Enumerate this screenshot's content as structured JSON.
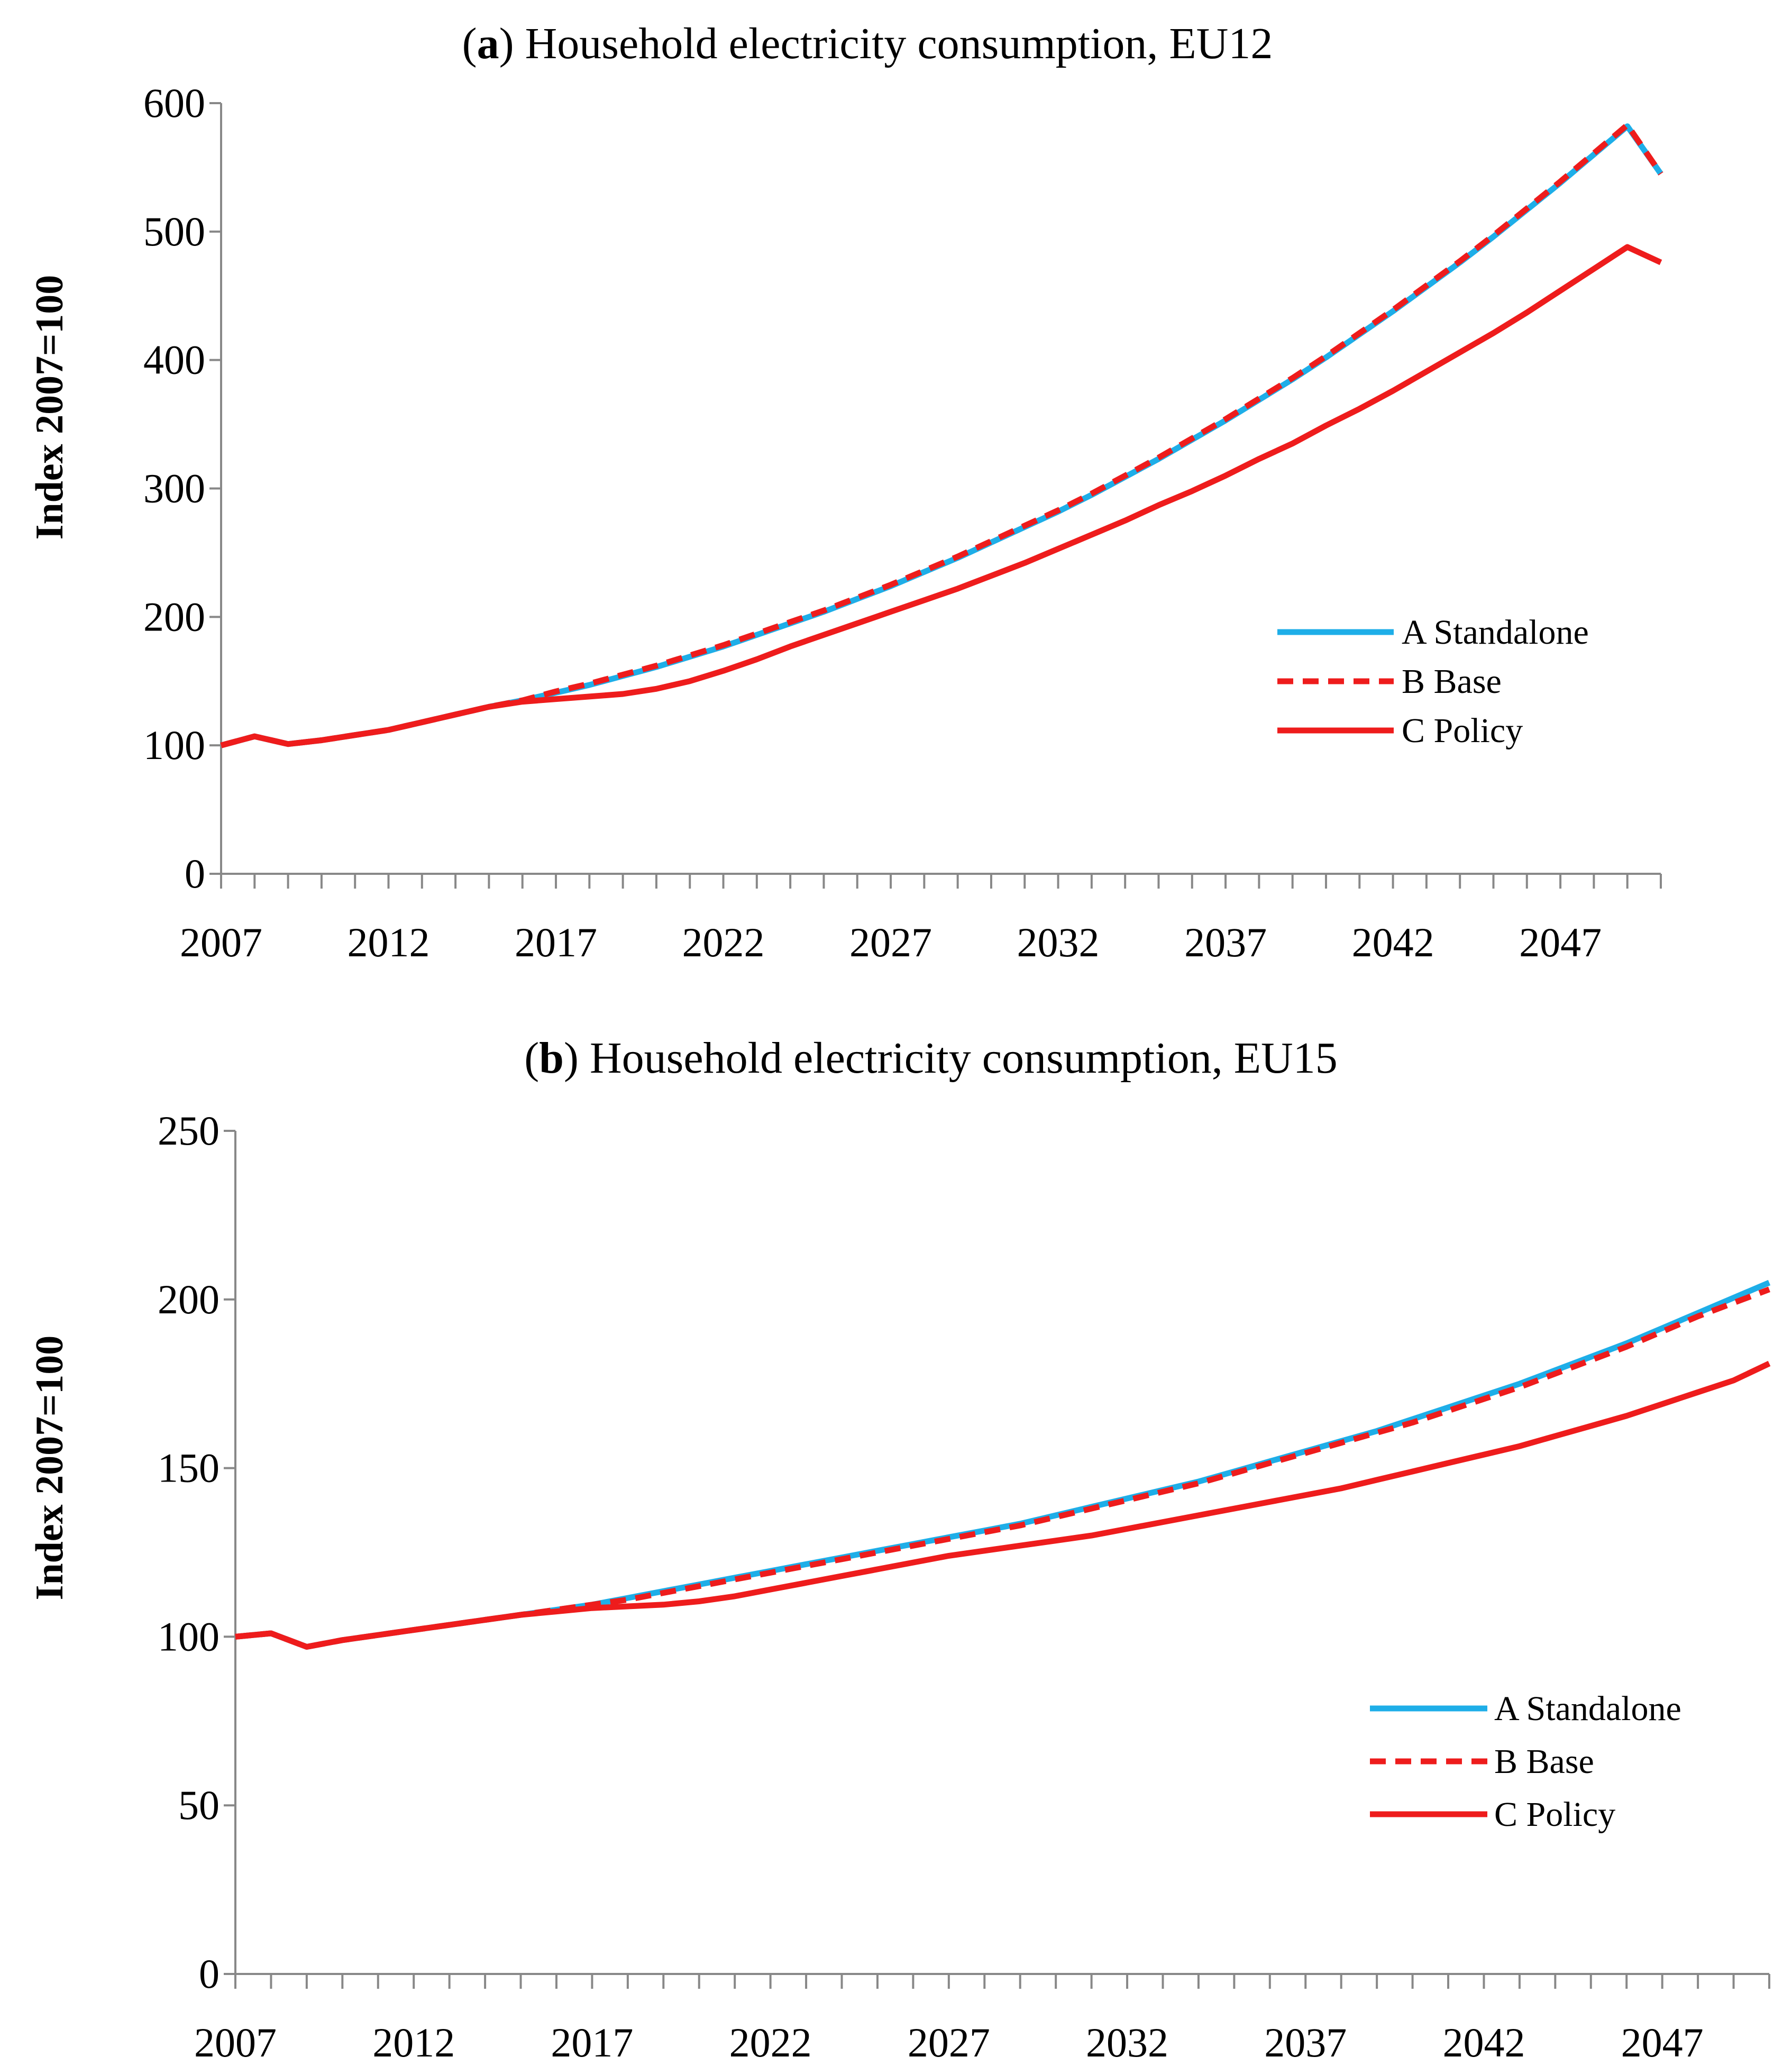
{
  "colors": {
    "standalone": "#1EAEE8",
    "base": "#EE1C1C",
    "policy": "#EE1C1C",
    "axis": "#888888",
    "text": "#000000"
  },
  "chart_data": [
    {
      "id": "a",
      "type": "line",
      "title_letter": "a",
      "title": " Household electricity consumption, EU12",
      "xlabel": "",
      "ylabel": "Index 2007=100",
      "xlim": [
        2007,
        2050
      ],
      "ylim": [
        0,
        600
      ],
      "yticks": [
        0,
        100,
        200,
        300,
        400,
        500,
        600
      ],
      "xticks": [
        2007,
        2012,
        2017,
        2022,
        2027,
        2032,
        2037,
        2042,
        2047
      ],
      "grid": false,
      "legend_position": "right-middle",
      "x": [
        2007,
        2008,
        2009,
        2010,
        2011,
        2012,
        2013,
        2014,
        2015,
        2016,
        2017,
        2018,
        2019,
        2020,
        2021,
        2022,
        2023,
        2024,
        2025,
        2026,
        2027,
        2028,
        2029,
        2030,
        2031,
        2032,
        2033,
        2034,
        2035,
        2036,
        2037,
        2038,
        2039,
        2040,
        2041,
        2042,
        2043,
        2044,
        2045,
        2046,
        2047,
        2048,
        2049,
        2050
      ],
      "series": [
        {
          "key": "standalone",
          "name": "A Standalone",
          "style": "solid",
          "values": [
            100,
            107,
            101,
            104,
            108,
            112,
            118,
            124,
            130,
            135,
            141,
            147,
            154,
            161,
            169,
            177,
            186,
            195,
            204,
            214,
            224,
            235,
            246,
            258,
            270,
            282,
            295,
            309,
            323,
            338,
            353,
            369,
            385,
            402,
            420,
            438,
            457,
            476,
            496,
            517,
            538,
            560,
            582,
            545
          ]
        },
        {
          "key": "base",
          "name": "B Base",
          "style": "dashed",
          "values": [
            100,
            107,
            101,
            104,
            108,
            112,
            118,
            124,
            130,
            135,
            142,
            148,
            155,
            162,
            170,
            178,
            187,
            196,
            205,
            215,
            225,
            236,
            247,
            259,
            271,
            283,
            296,
            310,
            324,
            339,
            354,
            370,
            386,
            403,
            421,
            439,
            458,
            477,
            497,
            518,
            539,
            561,
            583,
            545
          ]
        },
        {
          "key": "policy",
          "name": "C Policy",
          "style": "solid",
          "values": [
            100,
            107,
            101,
            104,
            108,
            112,
            118,
            124,
            130,
            134,
            136,
            138,
            140,
            144,
            150,
            158,
            167,
            177,
            186,
            195,
            204,
            213,
            222,
            232,
            242,
            253,
            264,
            275,
            287,
            298,
            310,
            323,
            335,
            349,
            362,
            376,
            391,
            406,
            421,
            437,
            454,
            471,
            488,
            476
          ]
        }
      ]
    },
    {
      "id": "b",
      "type": "line",
      "title_letter": "b",
      "title": " Household electricity consumption, EU15",
      "xlabel": "",
      "ylabel": "Index 2007=100",
      "xlim": [
        2007,
        2050
      ],
      "ylim": [
        0,
        250
      ],
      "yticks": [
        0,
        50,
        100,
        150,
        200,
        250
      ],
      "xticks": [
        2007,
        2012,
        2017,
        2022,
        2027,
        2032,
        2037,
        2042,
        2047
      ],
      "grid": false,
      "legend_position": "right-lower",
      "x": [
        2007,
        2008,
        2009,
        2010,
        2011,
        2012,
        2013,
        2014,
        2015,
        2016,
        2017,
        2018,
        2019,
        2020,
        2021,
        2022,
        2023,
        2024,
        2025,
        2026,
        2027,
        2028,
        2029,
        2030,
        2031,
        2032,
        2033,
        2034,
        2035,
        2036,
        2037,
        2038,
        2039,
        2040,
        2041,
        2042,
        2043,
        2044,
        2045,
        2046,
        2047,
        2048,
        2049,
        2050
      ],
      "series": [
        {
          "key": "standalone",
          "name": "A Standalone",
          "style": "solid",
          "values": [
            100,
            101,
            97,
            99,
            100.5,
            102,
            103.5,
            105,
            106.5,
            108,
            109.5,
            111.5,
            113.5,
            115.5,
            117.5,
            119.5,
            121.5,
            123.5,
            125.5,
            127.5,
            129.5,
            131.5,
            133.5,
            136,
            138.5,
            141,
            143.5,
            146,
            149,
            152,
            155,
            158,
            161,
            164.5,
            168,
            171.5,
            175,
            179,
            183,
            187,
            191.5,
            196,
            200.5,
            205
          ]
        },
        {
          "key": "base",
          "name": "B Base",
          "style": "dashed",
          "values": [
            100,
            101,
            97,
            99,
            100.5,
            102,
            103.5,
            105,
            106.5,
            108,
            109.5,
            111,
            113,
            115,
            117,
            119,
            121,
            123,
            125,
            127,
            129,
            131,
            133,
            135.5,
            138,
            140.5,
            143,
            145.5,
            148.5,
            151.5,
            154.5,
            157.5,
            160.5,
            163.5,
            167,
            170.5,
            174,
            178,
            182,
            186,
            190.5,
            195,
            199,
            203
          ]
        },
        {
          "key": "policy",
          "name": "C Policy",
          "style": "solid",
          "values": [
            100,
            101,
            97,
            99,
            100.5,
            102,
            103.5,
            105,
            106.5,
            107.5,
            108.5,
            109,
            109.5,
            110.5,
            112,
            114,
            116,
            118,
            120,
            122,
            124,
            125.5,
            127,
            128.5,
            130,
            132,
            134,
            136,
            138,
            140,
            142,
            144,
            146.5,
            149,
            151.5,
            154,
            156.5,
            159.5,
            162.5,
            165.5,
            169,
            172.5,
            176,
            181
          ]
        }
      ]
    }
  ]
}
